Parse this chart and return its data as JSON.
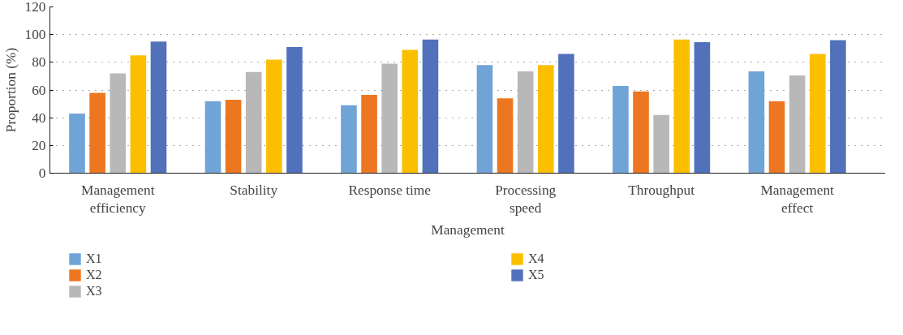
{
  "chart_data": {
    "type": "bar",
    "xlabel": "Management",
    "ylabel": "Proportion (%)",
    "categories": [
      "Management efficiency",
      "Stability",
      "Response time",
      "Processing speed",
      "Throughput",
      "Management effect"
    ],
    "series": [
      {
        "name": "X1",
        "color": "#70a3d6",
        "values": [
          43,
          52,
          49,
          78,
          63,
          73.5
        ]
      },
      {
        "name": "X2",
        "color": "#ed7621",
        "values": [
          58,
          53,
          56.5,
          54,
          59,
          52
        ]
      },
      {
        "name": "X3",
        "color": "#b8b8b8",
        "values": [
          72,
          73,
          79,
          73.5,
          42,
          70.5
        ]
      },
      {
        "name": "X4",
        "color": "#fbbf00",
        "values": [
          85,
          82,
          89,
          78,
          96.5,
          86
        ]
      },
      {
        "name": "X5",
        "color": "#5172ba",
        "values": [
          95,
          91,
          96.5,
          86,
          94.5,
          96
        ]
      }
    ],
    "ylim": [
      0,
      120
    ],
    "yticks": [
      0,
      20,
      40,
      60,
      80,
      100,
      120
    ],
    "grid": "y",
    "line_style": "dotted",
    "legend": "bottom"
  }
}
